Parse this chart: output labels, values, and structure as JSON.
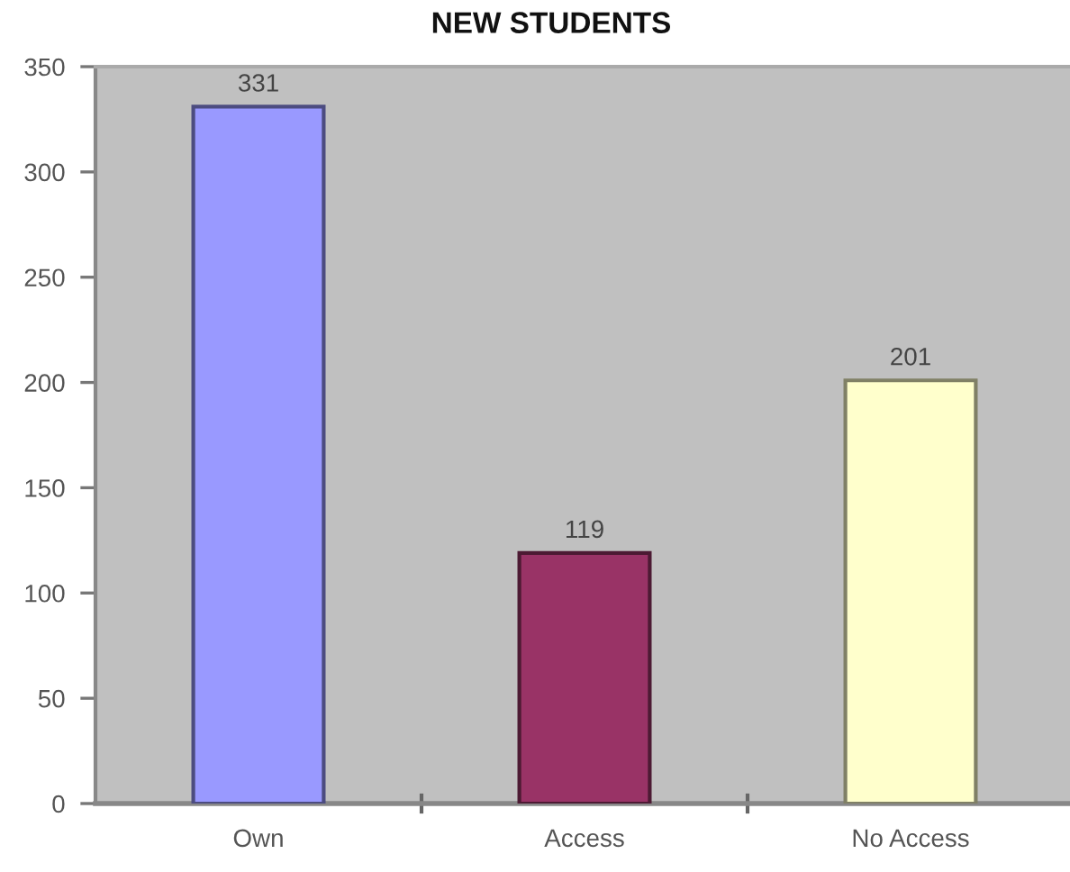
{
  "chart_data": {
    "type": "bar",
    "title": "NEW STUDENTS",
    "categories": [
      "Own",
      "Access",
      "No Access"
    ],
    "values": [
      331,
      119,
      201
    ],
    "colors": [
      "#9999ff",
      "#993366",
      "#ffffcc"
    ],
    "ylim": [
      0,
      350
    ],
    "yticks": [
      0,
      50,
      100,
      150,
      200,
      250,
      300,
      350
    ],
    "data_labels": true
  }
}
